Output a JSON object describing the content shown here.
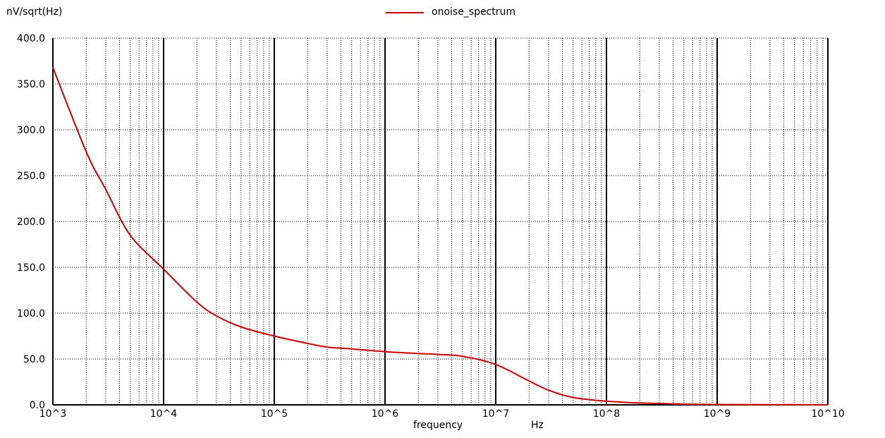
{
  "chart_data": {
    "type": "line",
    "xscale": "log",
    "ylabel": "nV/sqrt(Hz)",
    "xlabel": "frequency",
    "xunit": "Hz",
    "xlim": [
      1000,
      10000000000
    ],
    "ylim": [
      0,
      400
    ],
    "x_tick_labels": [
      "10^3",
      "10^4",
      "10^5",
      "10^6",
      "10^7",
      "10^8",
      "10^9",
      "10^10"
    ],
    "y_tick_labels": [
      "0.0",
      "50.0",
      "100.0",
      "150.0",
      "200.0",
      "250.0",
      "300.0",
      "350.0",
      "400.0"
    ],
    "grid": true,
    "legend_position": "top-center",
    "series": [
      {
        "name": "onoise_spectrum",
        "color": "#cc0000",
        "x": [
          1000,
          2000,
          3000,
          5000,
          10000,
          20000,
          30000,
          50000,
          100000,
          200000,
          300000,
          500000,
          1000000,
          2000000,
          3000000,
          5000000,
          10000000,
          20000000,
          30000000,
          50000000,
          100000000,
          200000000,
          300000000,
          500000000,
          1000000000,
          3000000000,
          10000000000
        ],
        "y": [
          368,
          276,
          235,
          185,
          148,
          112,
          97,
          85,
          75,
          67,
          63,
          61,
          58,
          56,
          55,
          53,
          44,
          26,
          16,
          8,
          4,
          2,
          1.5,
          0.8,
          0.4,
          0.2,
          0.1
        ]
      }
    ]
  }
}
